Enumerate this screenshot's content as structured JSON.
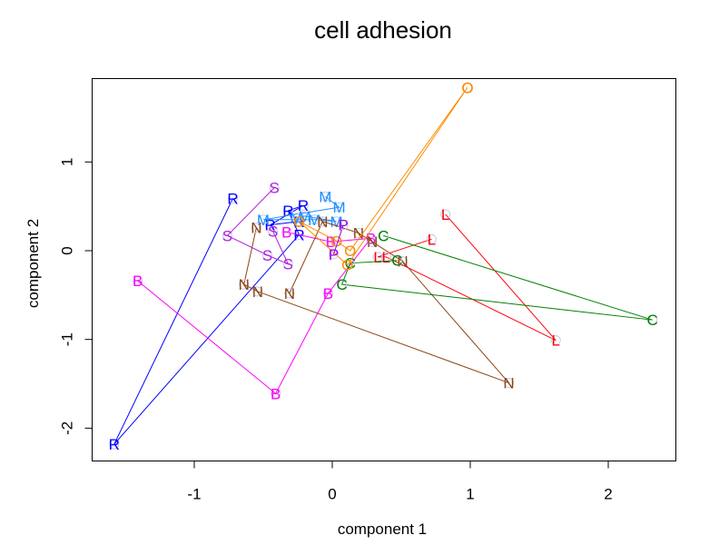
{
  "chart_data": {
    "type": "scatter",
    "title": "cell adhesion",
    "xlabel": "component 1",
    "ylabel": "component 2",
    "xlim": [
      -1.74,
      2.49
    ],
    "ylim": [
      -2.37,
      1.94
    ],
    "xticks": [
      -1,
      0,
      1,
      2
    ],
    "yticks": [
      -2,
      -1,
      0,
      1
    ],
    "xtick_labels": [
      "-1",
      "0",
      "1",
      "2"
    ],
    "ytick_labels": [
      "-2",
      "-1",
      "0",
      "1"
    ],
    "grid": false,
    "legend": "none",
    "marker_style": "small hollow circle with letter label, points connected by lines in series order",
    "series": [
      {
        "name": "R",
        "color": "#0000FF",
        "points": [
          [
            -0.72,
            0.59
          ],
          [
            -1.58,
            -2.18
          ],
          [
            -0.24,
            0.18
          ],
          [
            -0.32,
            0.45
          ],
          [
            -0.21,
            0.51
          ],
          [
            -0.45,
            0.29
          ],
          [
            -0.24,
            0.33
          ]
        ]
      },
      {
        "name": "M",
        "color": "#1E90FF",
        "points": [
          [
            -0.05,
            0.61
          ],
          [
            0.05,
            0.49
          ],
          [
            -0.5,
            0.35
          ],
          [
            -0.13,
            0.35
          ],
          [
            0.03,
            0.33
          ],
          [
            -0.2,
            0.39
          ],
          [
            -0.26,
            0.37
          ]
        ]
      },
      {
        "name": "S",
        "color": "#B020E0",
        "points": [
          [
            -0.42,
            0.71
          ],
          [
            -0.76,
            0.17
          ],
          [
            -0.47,
            -0.05
          ],
          [
            -0.32,
            -0.15
          ],
          [
            -0.43,
            0.22
          ]
        ]
      },
      {
        "name": "B",
        "color": "#FF00FF",
        "points": [
          [
            -1.41,
            -0.34
          ],
          [
            -0.41,
            -1.61
          ],
          [
            -0.03,
            -0.48
          ],
          [
            0.28,
            0.14
          ],
          [
            -0.01,
            0.1
          ],
          [
            -0.33,
            0.21
          ]
        ]
      },
      {
        "name": "N",
        "color": "#8B4513",
        "points": [
          [
            -0.55,
            0.26
          ],
          [
            -0.64,
            -0.38
          ],
          [
            -0.54,
            -0.46
          ],
          [
            1.28,
            -1.49
          ],
          [
            0.51,
            -0.12
          ],
          [
            0.29,
            0.1
          ],
          [
            0.19,
            0.2
          ],
          [
            -0.07,
            0.33
          ],
          [
            -0.31,
            -0.48
          ]
        ]
      },
      {
        "name": "L",
        "color": "#FF0000",
        "points": [
          [
            0.82,
            0.41
          ],
          [
            1.62,
            -1.01
          ],
          [
            0.39,
            -0.07
          ],
          [
            0.33,
            -0.07
          ],
          [
            0.72,
            0.13
          ]
        ]
      },
      {
        "name": "C",
        "color": "#008000",
        "points": [
          [
            0.37,
            0.17
          ],
          [
            2.32,
            -0.78
          ],
          [
            0.07,
            -0.38
          ],
          [
            0.13,
            -0.14
          ],
          [
            0.47,
            -0.11
          ]
        ]
      },
      {
        "name": "O",
        "color": "#FF8C00",
        "points": [
          [
            0.98,
            1.84
          ],
          [
            0.11,
            -0.16
          ],
          [
            -0.24,
            0.33
          ],
          [
            0.03,
            0.11
          ],
          [
            0.13,
            0.0
          ],
          [
            0.98,
            1.84
          ]
        ]
      },
      {
        "name": "P",
        "color": "#9A00E6",
        "points": [
          [
            0.01,
            -0.04
          ],
          [
            0.08,
            0.29
          ]
        ]
      }
    ]
  }
}
